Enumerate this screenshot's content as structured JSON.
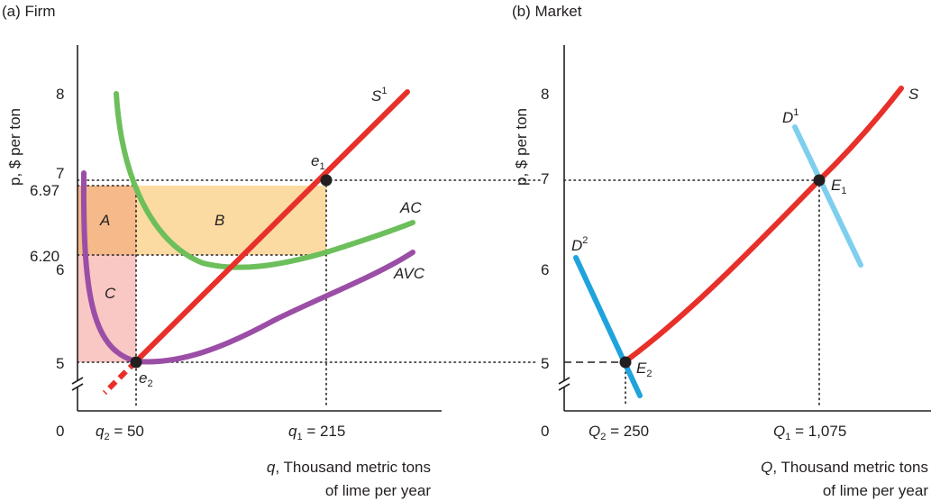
{
  "chart_data": [
    {
      "type": "line",
      "panel_title": "(a) Firm",
      "xlabel_line1": "q, Thousand metric tons",
      "xlabel_line2": "of lime per year",
      "ylabel": "p, $ per ton",
      "origin_label": "0",
      "x_ticks": [
        {
          "label": "q2 = 50",
          "value": 50
        },
        {
          "label": "q1 = 215",
          "value": 215
        }
      ],
      "y_ticks": [
        {
          "label": "8",
          "value": 8
        },
        {
          "label": "7",
          "value": 7
        },
        {
          "label": "6.97",
          "value": 6.97
        },
        {
          "label": "6.20",
          "value": 6.2
        },
        {
          "label": "6",
          "value": 6
        },
        {
          "label": "5",
          "value": 5
        }
      ],
      "series": [
        {
          "name": "S1",
          "color": "#e8302a",
          "x": [
            28,
            50,
            215,
            254
          ],
          "y": [
            4.85,
            5,
            7,
            7.5
          ]
        },
        {
          "name": "AC",
          "color": "#6cbf5a",
          "x": [
            35,
            50,
            80,
            120,
            160,
            215,
            260,
            300
          ],
          "y": [
            8,
            7,
            6.35,
            6.02,
            6.02,
            6.2,
            6.35,
            6.6
          ]
        },
        {
          "name": "AVC",
          "color": "#9b4ea6",
          "x": [
            5,
            10,
            20,
            35,
            50,
            80,
            120,
            160,
            215,
            260,
            300
          ],
          "y": [
            7.05,
            6.3,
            5.5,
            5.08,
            5,
            5.02,
            5.12,
            5.3,
            5.6,
            5.9,
            6.2
          ]
        }
      ],
      "points": [
        {
          "name": "e1",
          "x": 215,
          "y": 7
        },
        {
          "name": "e2",
          "x": 50,
          "y": 5
        }
      ],
      "regions": [
        {
          "name": "A",
          "color": "#f5b98a",
          "x": [
            0,
            50
          ],
          "y": [
            6.2,
            6.97
          ]
        },
        {
          "name": "B",
          "color": "#fbdba2",
          "x": [
            50,
            215
          ],
          "y": [
            6.2,
            6.97
          ]
        },
        {
          "name": "C",
          "color": "#f9c8c4",
          "x": [
            0,
            50
          ],
          "y": [
            5,
            6.2
          ]
        }
      ]
    },
    {
      "type": "line",
      "panel_title": "(b) Market",
      "xlabel_line1": "Q, Thousand metric tons",
      "xlabel_line2": "of lime per year",
      "ylabel": "p, $ per ton",
      "origin_label": "0",
      "x_ticks": [
        {
          "label": "Q2 = 250",
          "value": 250
        },
        {
          "label": "Q1 = 1,075",
          "value": 1075
        }
      ],
      "y_ticks": [
        {
          "label": "8",
          "value": 8
        },
        {
          "label": "7",
          "value": 7
        },
        {
          "label": "6",
          "value": 6
        },
        {
          "label": "5",
          "value": 5
        }
      ],
      "series": [
        {
          "name": "S",
          "color": "#e8302a",
          "x": [
            250,
            1075,
            1400
          ],
          "y": [
            5,
            7,
            8.1
          ]
        },
        {
          "name": "D1",
          "color": "#7ecfee",
          "x": [
            980,
            1075,
            1240
          ],
          "y": [
            7.6,
            7,
            6.03
          ]
        },
        {
          "name": "D2",
          "color": "#1fa3dc",
          "x": [
            110,
            250,
            310
          ],
          "y": [
            6.15,
            5,
            4.8
          ]
        }
      ],
      "points": [
        {
          "name": "E1",
          "x": 1075,
          "y": 7
        },
        {
          "name": "E2",
          "x": 250,
          "y": 5
        }
      ]
    }
  ]
}
